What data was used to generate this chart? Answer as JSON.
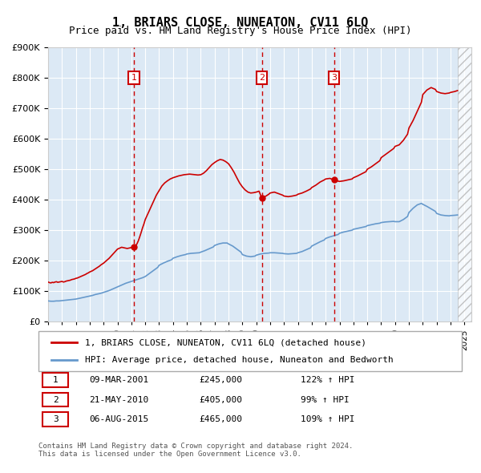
{
  "title": "1, BRIARS CLOSE, NUNEATON, CV11 6LQ",
  "subtitle": "Price paid vs. HM Land Registry's House Price Index (HPI)",
  "legend_line1": "1, BRIARS CLOSE, NUNEATON, CV11 6LQ (detached house)",
  "legend_line2": "HPI: Average price, detached house, Nuneaton and Bedworth",
  "footer": "Contains HM Land Registry data © Crown copyright and database right 2024.\nThis data is licensed under the Open Government Licence v3.0.",
  "ylim": [
    0,
    900000
  ],
  "yticks": [
    0,
    100000,
    200000,
    300000,
    400000,
    500000,
    600000,
    700000,
    800000,
    900000
  ],
  "xlim_start": 1995.0,
  "xlim_end": 2025.5,
  "bg_color": "#dce9f5",
  "hatch_start": 2024.5,
  "sales": [
    {
      "num": 1,
      "year": 2001.2,
      "price": 245000,
      "date": "09-MAR-2001",
      "pct": "122%",
      "dir": "↑"
    },
    {
      "num": 2,
      "year": 2010.4,
      "price": 405000,
      "date": "21-MAY-2010",
      "pct": "99%",
      "dir": "↑"
    },
    {
      "num": 3,
      "year": 2015.6,
      "price": 465000,
      "date": "06-AUG-2015",
      "pct": "109%",
      "dir": "↑"
    }
  ],
  "property_line_color": "#cc0000",
  "hpi_line_color": "#6699cc",
  "sale_marker_color": "#cc0000",
  "property_data": {
    "years": [
      1995.0,
      1995.1,
      1995.2,
      1995.3,
      1995.4,
      1995.5,
      1995.6,
      1995.7,
      1995.8,
      1995.9,
      1996.0,
      1996.1,
      1996.2,
      1996.3,
      1996.4,
      1996.5,
      1996.6,
      1996.7,
      1996.8,
      1996.9,
      1997.0,
      1997.1,
      1997.2,
      1997.3,
      1997.4,
      1997.5,
      1997.6,
      1997.7,
      1997.8,
      1997.9,
      1998.0,
      1998.1,
      1998.2,
      1998.3,
      1998.4,
      1998.5,
      1998.6,
      1998.7,
      1998.8,
      1998.9,
      1999.0,
      1999.1,
      1999.2,
      1999.3,
      1999.4,
      1999.5,
      1999.6,
      1999.7,
      1999.8,
      1999.9,
      2000.0,
      2000.1,
      2000.2,
      2000.3,
      2000.4,
      2000.5,
      2000.6,
      2000.7,
      2000.8,
      2000.9,
      2001.0,
      2001.2,
      2001.3,
      2001.4,
      2001.5,
      2001.6,
      2001.7,
      2001.8,
      2001.9,
      2002.0,
      2002.2,
      2002.4,
      2002.6,
      2002.8,
      2003.0,
      2003.2,
      2003.4,
      2003.6,
      2003.8,
      2004.0,
      2004.2,
      2004.4,
      2004.6,
      2004.8,
      2005.0,
      2005.2,
      2005.4,
      2005.6,
      2005.8,
      2006.0,
      2006.2,
      2006.4,
      2006.6,
      2006.8,
      2007.0,
      2007.2,
      2007.4,
      2007.6,
      2007.8,
      2008.0,
      2008.2,
      2008.4,
      2008.6,
      2008.8,
      2009.0,
      2009.2,
      2009.4,
      2009.6,
      2009.8,
      2010.0,
      2010.2,
      2010.4,
      2010.5,
      2010.7,
      2010.9,
      2011.0,
      2011.3,
      2011.6,
      2011.9,
      2012.0,
      2012.3,
      2012.6,
      2012.9,
      2013.0,
      2013.3,
      2013.6,
      2013.9,
      2014.0,
      2014.3,
      2014.6,
      2014.9,
      2015.0,
      2015.3,
      2015.6,
      2015.8,
      2016.0,
      2016.3,
      2016.6,
      2016.9,
      2017.0,
      2017.3,
      2017.6,
      2017.9,
      2018.0,
      2018.3,
      2018.6,
      2018.9,
      2019.0,
      2019.3,
      2019.6,
      2019.9,
      2020.0,
      2020.3,
      2020.6,
      2020.9,
      2021.0,
      2021.3,
      2021.6,
      2021.9,
      2022.0,
      2022.3,
      2022.6,
      2022.9,
      2023.0,
      2023.3,
      2023.6,
      2023.9,
      2024.0,
      2024.3,
      2024.5
    ],
    "values": [
      130000,
      128000,
      127000,
      129000,
      128000,
      130000,
      131000,
      129000,
      130000,
      131000,
      132000,
      130000,
      131000,
      133000,
      134000,
      135000,
      136000,
      138000,
      139000,
      140000,
      142000,
      143000,
      145000,
      147000,
      149000,
      151000,
      153000,
      155000,
      158000,
      160000,
      163000,
      165000,
      167000,
      170000,
      173000,
      176000,
      179000,
      182000,
      186000,
      189000,
      192000,
      196000,
      200000,
      204000,
      208000,
      213000,
      218000,
      223000,
      228000,
      233000,
      238000,
      240000,
      242000,
      244000,
      243000,
      242000,
      241000,
      240000,
      241000,
      242000,
      243000,
      245000,
      248000,
      255000,
      265000,
      278000,
      292000,
      307000,
      320000,
      335000,
      355000,
      375000,
      395000,
      415000,
      430000,
      445000,
      455000,
      462000,
      468000,
      472000,
      475000,
      478000,
      480000,
      482000,
      483000,
      484000,
      483000,
      482000,
      481000,
      482000,
      487000,
      495000,
      505000,
      515000,
      522000,
      528000,
      532000,
      530000,
      525000,
      518000,
      505000,
      490000,
      472000,
      455000,
      442000,
      432000,
      425000,
      422000,
      423000,
      425000,
      428000,
      405000,
      408000,
      412000,
      418000,
      422000,
      425000,
      420000,
      415000,
      412000,
      410000,
      412000,
      415000,
      418000,
      422000,
      428000,
      435000,
      440000,
      448000,
      458000,
      465000,
      468000,
      470000,
      465000,
      462000,
      460000,
      462000,
      465000,
      468000,
      472000,
      478000,
      485000,
      492000,
      500000,
      508000,
      518000,
      528000,
      538000,
      548000,
      558000,
      568000,
      575000,
      580000,
      595000,
      615000,
      635000,
      660000,
      690000,
      720000,
      745000,
      760000,
      768000,
      762000,
      755000,
      750000,
      748000,
      750000,
      752000,
      755000,
      758000
    ]
  },
  "hpi_data": {
    "years": [
      1995.0,
      1995.2,
      1995.4,
      1995.6,
      1995.8,
      1996.0,
      1996.2,
      1996.4,
      1996.6,
      1996.8,
      1997.0,
      1997.2,
      1997.4,
      1997.6,
      1997.8,
      1998.0,
      1998.2,
      1998.4,
      1998.6,
      1998.8,
      1999.0,
      1999.2,
      1999.4,
      1999.6,
      1999.8,
      2000.0,
      2000.2,
      2000.4,
      2000.6,
      2000.8,
      2001.0,
      2001.2,
      2001.4,
      2001.6,
      2001.8,
      2002.0,
      2002.3,
      2002.6,
      2002.9,
      2003.0,
      2003.3,
      2003.6,
      2003.9,
      2004.0,
      2004.3,
      2004.6,
      2004.9,
      2005.0,
      2005.3,
      2005.6,
      2005.9,
      2006.0,
      2006.3,
      2006.6,
      2006.9,
      2007.0,
      2007.3,
      2007.6,
      2007.9,
      2008.0,
      2008.3,
      2008.6,
      2008.9,
      2009.0,
      2009.3,
      2009.6,
      2009.9,
      2010.0,
      2010.3,
      2010.6,
      2010.9,
      2011.0,
      2011.3,
      2011.6,
      2011.9,
      2012.0,
      2012.3,
      2012.6,
      2012.9,
      2013.0,
      2013.3,
      2013.6,
      2013.9,
      2014.0,
      2014.3,
      2014.6,
      2014.9,
      2015.0,
      2015.3,
      2015.6,
      2015.9,
      2016.0,
      2016.3,
      2016.6,
      2016.9,
      2017.0,
      2017.3,
      2017.6,
      2017.9,
      2018.0,
      2018.3,
      2018.6,
      2018.9,
      2019.0,
      2019.3,
      2019.6,
      2019.9,
      2020.0,
      2020.3,
      2020.6,
      2020.9,
      2021.0,
      2021.3,
      2021.6,
      2021.9,
      2022.0,
      2022.3,
      2022.6,
      2022.9,
      2023.0,
      2023.3,
      2023.6,
      2023.9,
      2024.0,
      2024.3,
      2024.5
    ],
    "values": [
      68000,
      67000,
      67000,
      68000,
      68000,
      69000,
      70000,
      71000,
      72000,
      73000,
      74000,
      76000,
      78000,
      80000,
      82000,
      84000,
      86000,
      89000,
      91000,
      93000,
      96000,
      99000,
      102000,
      106000,
      110000,
      114000,
      118000,
      122000,
      126000,
      129000,
      132000,
      135000,
      138000,
      141000,
      144000,
      148000,
      158000,
      168000,
      178000,
      185000,
      192000,
      198000,
      203000,
      208000,
      213000,
      217000,
      220000,
      222000,
      224000,
      225000,
      226000,
      228000,
      233000,
      239000,
      245000,
      250000,
      255000,
      258000,
      258000,
      255000,
      248000,
      238000,
      228000,
      220000,
      215000,
      213000,
      215000,
      218000,
      222000,
      224000,
      225000,
      226000,
      226000,
      225000,
      224000,
      223000,
      222000,
      223000,
      224000,
      226000,
      230000,
      236000,
      242000,
      248000,
      255000,
      262000,
      268000,
      273000,
      278000,
      282000,
      286000,
      290000,
      294000,
      297000,
      300000,
      303000,
      306000,
      309000,
      312000,
      315000,
      318000,
      321000,
      323000,
      325000,
      327000,
      328000,
      329000,
      328000,
      328000,
      335000,
      345000,
      358000,
      372000,
      383000,
      388000,
      385000,
      378000,
      370000,
      362000,
      355000,
      350000,
      348000,
      347000,
      348000,
      349000,
      350000
    ]
  }
}
